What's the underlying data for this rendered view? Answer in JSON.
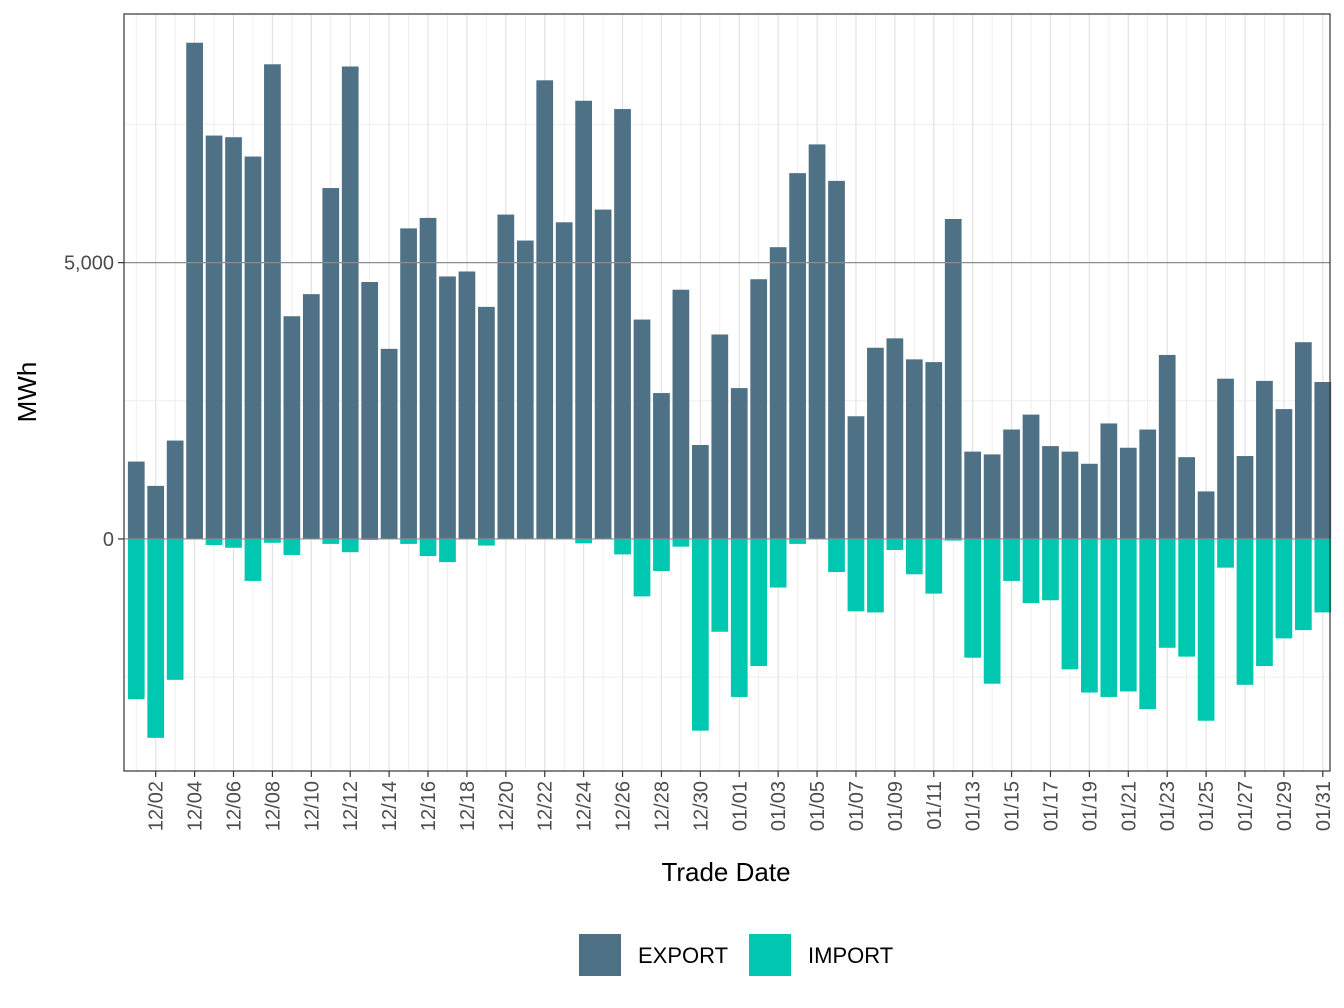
{
  "chart_data": {
    "type": "bar",
    "stacked": "diverging",
    "xlabel": "Trade Date",
    "ylabel": "MWh",
    "ylim": [
      -4200,
      9500
    ],
    "yticks": [
      0,
      5000
    ],
    "ytick_labels": [
      "0",
      "5,000"
    ],
    "x_tick_labels": [
      "12/02",
      "12/04",
      "12/06",
      "12/08",
      "12/10",
      "12/12",
      "12/14",
      "12/16",
      "12/18",
      "12/20",
      "12/22",
      "12/24",
      "12/26",
      "12/28",
      "12/30",
      "01/01",
      "01/03",
      "01/05",
      "01/07",
      "01/09",
      "01/11",
      "01/13",
      "01/15",
      "01/17",
      "01/19",
      "01/21",
      "01/23",
      "01/25",
      "01/27",
      "01/29",
      "01/31"
    ],
    "categories": [
      "12/01",
      "12/02",
      "12/03",
      "12/04",
      "12/05",
      "12/06",
      "12/07",
      "12/08",
      "12/09",
      "12/10",
      "12/11",
      "12/12",
      "12/13",
      "12/14",
      "12/15",
      "12/16",
      "12/17",
      "12/18",
      "12/19",
      "12/20",
      "12/21",
      "12/22",
      "12/23",
      "12/24",
      "12/25",
      "12/26",
      "12/27",
      "12/28",
      "12/29",
      "12/30",
      "12/31",
      "01/01",
      "01/02",
      "01/03",
      "01/04",
      "01/05",
      "01/06",
      "01/07",
      "01/08",
      "01/09",
      "01/10",
      "01/11",
      "01/12",
      "01/13",
      "01/14",
      "01/15",
      "01/16",
      "01/17",
      "01/18",
      "01/19",
      "01/20",
      "01/21",
      "01/22",
      "01/23",
      "01/24",
      "01/25",
      "01/26",
      "01/27",
      "01/28",
      "01/29",
      "01/30",
      "01/31"
    ],
    "series": [
      {
        "name": "EXPORT",
        "color": "#4e7186",
        "values": [
          1400,
          960,
          1780,
          8980,
          7300,
          7270,
          6920,
          8590,
          4030,
          4430,
          6350,
          8550,
          4650,
          3440,
          5620,
          5810,
          4750,
          4840,
          4200,
          5870,
          5400,
          8300,
          5730,
          7930,
          5960,
          7780,
          3970,
          2640,
          4510,
          1700,
          3700,
          2730,
          4700,
          5280,
          6620,
          7140,
          6480,
          2220,
          3460,
          3630,
          3250,
          3200,
          5790,
          1580,
          1530,
          1980,
          2250,
          1680,
          1580,
          1360,
          2090,
          1650,
          1980,
          3330,
          1480,
          860,
          2900,
          1500,
          2860,
          2350,
          3560,
          2840
        ]
      },
      {
        "name": "IMPORT",
        "color": "#00c8b0",
        "values": [
          -2900,
          -3600,
          -2550,
          0,
          -110,
          -160,
          -760,
          -70,
          -290,
          0,
          -90,
          -240,
          -20,
          0,
          -90,
          -310,
          -420,
          0,
          -120,
          0,
          0,
          0,
          0,
          -80,
          0,
          -280,
          -1040,
          -580,
          -140,
          -3470,
          -1680,
          -2860,
          -2300,
          -880,
          -90,
          0,
          -600,
          -1310,
          -1330,
          -200,
          -640,
          -990,
          -30,
          -2150,
          -2620,
          -760,
          -1160,
          -1110,
          -2360,
          -2780,
          -2860,
          -2760,
          -3080,
          -1970,
          -2130,
          -3290,
          -520,
          -2640,
          -2300,
          -1800,
          -1650,
          -1330
        ]
      }
    ],
    "legend_position": "bottom",
    "legend": [
      "EXPORT",
      "IMPORT"
    ],
    "grid": true
  }
}
